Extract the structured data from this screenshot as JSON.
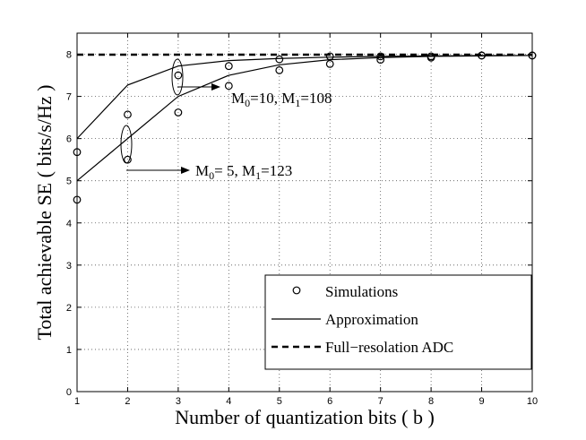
{
  "chart_data": {
    "type": "line",
    "title": "",
    "xlabel": "Number of quantization bits ( b )",
    "ylabel": "Total achievable SE ( bits/s/Hz )",
    "xlim": [
      1,
      10
    ],
    "ylim": [
      0,
      8.5
    ],
    "xticks": [
      "1",
      "2",
      "3",
      "4",
      "5",
      "6",
      "7",
      "8",
      "9",
      "10"
    ],
    "yticks": [
      "0",
      "1",
      "2",
      "3",
      "4",
      "5",
      "6",
      "7",
      "8"
    ],
    "grid": "dotted",
    "legend_position": "bottom-right",
    "legend": [
      {
        "label": "Simulations",
        "style": "marker-circle"
      },
      {
        "label": "Approximation",
        "style": "solid"
      },
      {
        "label": "Full−resolation ADC",
        "style": "dashed"
      }
    ],
    "series": [
      {
        "x": [
          1,
          2,
          3,
          4,
          5,
          6,
          7,
          8,
          9,
          10
        ],
        "values": [
          6.0,
          7.27,
          7.72,
          7.85,
          7.9,
          7.93,
          7.95,
          7.96,
          7.97,
          7.97
        ],
        "style": "solid"
      },
      {
        "x": [
          1,
          2,
          3,
          4,
          5,
          6,
          7,
          8,
          9,
          10
        ],
        "values": [
          5.0,
          6.0,
          7.0,
          7.5,
          7.75,
          7.87,
          7.92,
          7.95,
          7.96,
          7.97
        ],
        "style": "solid"
      },
      {
        "x": [
          1,
          2,
          3,
          4,
          5,
          6,
          7,
          8,
          9,
          10
        ],
        "values": [
          7.99,
          7.99,
          7.99,
          7.99,
          7.99,
          7.99,
          7.99,
          7.99,
          7.99,
          7.99
        ],
        "style": "dashed"
      },
      {
        "x": [
          1,
          2,
          3,
          4,
          5,
          6,
          7,
          8,
          9,
          10
        ],
        "values": [
          5.68,
          6.57,
          7.5,
          7.72,
          7.88,
          7.95,
          7.95,
          7.95,
          7.97,
          7.97
        ],
        "style": "markers"
      },
      {
        "x": [
          1,
          2,
          3,
          4,
          5,
          6,
          7,
          8,
          9,
          10
        ],
        "values": [
          4.55,
          5.5,
          6.62,
          7.25,
          7.62,
          7.77,
          7.87,
          7.92,
          7.97,
          7.97
        ],
        "style": "markers"
      }
    ],
    "annotations": [
      {
        "M0": "10",
        "M1": "108"
      },
      {
        "M0": " 5",
        "M1": "123"
      }
    ]
  }
}
